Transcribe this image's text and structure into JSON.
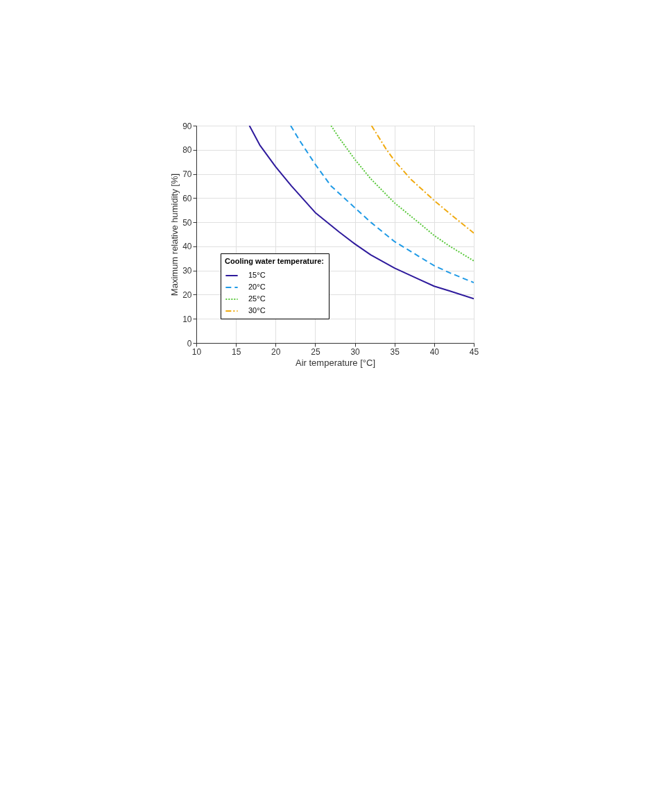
{
  "chart_data": {
    "type": "line",
    "xlabel": "Air temperature [°C]",
    "ylabel": "Maximum relative humidity [%]",
    "legend_title": "Cooling water temperature:",
    "xlim": [
      10,
      45
    ],
    "xticks": [
      10,
      15,
      20,
      25,
      30,
      35,
      40,
      45
    ],
    "ylim": [
      0,
      90
    ],
    "yticks": [
      0,
      10,
      20,
      30,
      40,
      50,
      60,
      70,
      80,
      90
    ],
    "grid": true,
    "legend": "bottom left",
    "marker": "none",
    "series": [
      {
        "name": "15°C",
        "color": "#2e1a9c",
        "line_style": "solid",
        "x": [
          16.7,
          18,
          20,
          22,
          25,
          28,
          30,
          32,
          35,
          38,
          40,
          42,
          45
        ],
        "values": [
          90,
          82,
          73,
          65,
          54,
          46,
          41,
          36.5,
          31,
          26.5,
          23.5,
          21.5,
          18.3
        ]
      },
      {
        "name": "20°C",
        "color": "#1f9ae6",
        "line_style": "dashed",
        "x": [
          21.9,
          23,
          25,
          27,
          30,
          32,
          35,
          38,
          40,
          42,
          45
        ],
        "values": [
          90,
          84,
          74,
          65,
          56,
          50,
          42,
          36,
          32,
          29,
          25
        ]
      },
      {
        "name": "25°C",
        "color": "#5ac83c",
        "line_style": "dotted",
        "x": [
          27,
          28,
          30,
          32,
          35,
          38,
          40,
          42,
          45
        ],
        "values": [
          90,
          85,
          76,
          68,
          58,
          50,
          44.5,
          40,
          34
        ]
      },
      {
        "name": "30°C",
        "color": "#f0aa10",
        "line_style": "dashdot",
        "x": [
          32.1,
          34,
          35,
          37,
          40,
          42,
          45
        ],
        "values": [
          90,
          80,
          75.5,
          68,
          59,
          53.5,
          45.5
        ]
      }
    ]
  }
}
